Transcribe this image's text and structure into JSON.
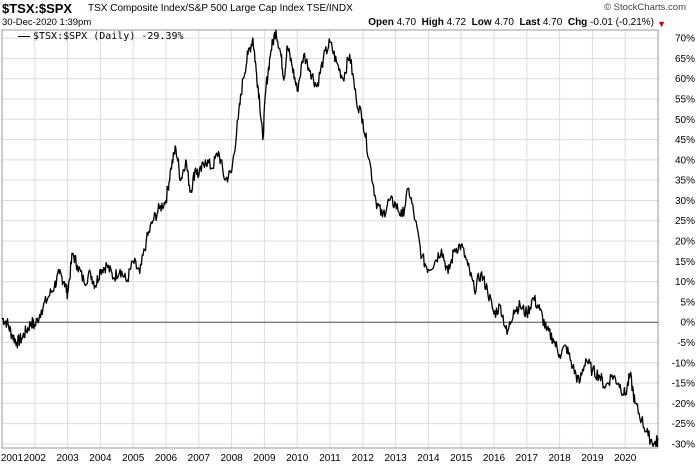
{
  "header": {
    "symbol": "$TSX:$SPX",
    "description": "TSX Composite Index/S&P 500 Large Cap Index",
    "exchange": "TSE/INDX",
    "datetime": "30-Dec-2020 1:39pm",
    "brand": "© StockCharts.com",
    "quote": {
      "open_label": "Open",
      "open": "4.70",
      "high_label": "High",
      "high": "4.72",
      "low_label": "Low",
      "low": "4.70",
      "last_label": "Last",
      "last": "4.70",
      "chg_label": "Chg",
      "chg": "-0.01 (-0.21%)"
    },
    "down_color": "#cc0000"
  },
  "chart_data": {
    "type": "line",
    "title": "$TSX:$SPX",
    "xlabel": "",
    "ylabel": "",
    "x_ticks": [
      "2001",
      "2002",
      "2003",
      "2004",
      "2005",
      "2006",
      "2007",
      "2008",
      "2009",
      "2010",
      "2011",
      "2012",
      "2013",
      "2014",
      "2015",
      "2016",
      "2017",
      "2018",
      "2019",
      "2020"
    ],
    "y_ticks": [
      "-30%",
      "-25%",
      "-20%",
      "-15%",
      "-10%",
      "-5%",
      "0%",
      "5%",
      "10%",
      "15%",
      "20%",
      "25%",
      "30%",
      "35%",
      "40%",
      "45%",
      "50%",
      "55%",
      "60%",
      "65%",
      "70%"
    ],
    "xlim": [
      2001.0,
      2021.0
    ],
    "ylim": [
      -31,
      72
    ],
    "grid": true,
    "zero_line": 0,
    "legend_position": "top-left",
    "series": [
      {
        "name": "$TSX:$SPX (Daily) -29.39%",
        "color": "#000000",
        "x": [
          2001.0,
          2001.15,
          2001.3,
          2001.45,
          2001.6,
          2001.75,
          2001.9,
          2002.0,
          2002.2,
          2002.4,
          2002.6,
          2002.75,
          2002.9,
          2003.0,
          2003.15,
          2003.3,
          2003.5,
          2003.7,
          2003.85,
          2004.0,
          2004.2,
          2004.4,
          2004.6,
          2004.8,
          2005.0,
          2005.2,
          2005.4,
          2005.6,
          2005.8,
          2006.0,
          2006.15,
          2006.3,
          2006.45,
          2006.6,
          2006.75,
          2006.9,
          2007.0,
          2007.2,
          2007.4,
          2007.6,
          2007.8,
          2008.0,
          2008.2,
          2008.35,
          2008.5,
          2008.65,
          2008.75,
          2008.85,
          2008.95,
          2009.05,
          2009.2,
          2009.35,
          2009.5,
          2009.6,
          2009.7,
          2009.85,
          2010.0,
          2010.2,
          2010.4,
          2010.6,
          2010.8,
          2011.0,
          2011.2,
          2011.4,
          2011.6,
          2011.8,
          2012.0,
          2012.2,
          2012.4,
          2012.6,
          2012.8,
          2013.0,
          2013.2,
          2013.4,
          2013.6,
          2013.8,
          2014.0,
          2014.2,
          2014.4,
          2014.6,
          2014.8,
          2015.0,
          2015.2,
          2015.4,
          2015.6,
          2015.8,
          2016.0,
          2016.2,
          2016.4,
          2016.6,
          2016.8,
          2017.0,
          2017.2,
          2017.4,
          2017.6,
          2017.8,
          2018.0,
          2018.2,
          2018.4,
          2018.6,
          2018.8,
          2019.0,
          2019.2,
          2019.4,
          2019.6,
          2019.8,
          2020.0,
          2020.15,
          2020.3,
          2020.5,
          2020.7,
          2020.9,
          2021.0
        ],
        "y": [
          1,
          0,
          -3,
          -5,
          -4,
          -2,
          0,
          -1,
          3,
          6,
          9,
          12,
          10,
          7,
          17,
          14,
          10,
          12,
          9,
          13,
          14,
          11,
          13,
          10,
          15,
          12,
          20,
          25,
          28,
          30,
          38,
          43,
          35,
          40,
          32,
          38,
          36,
          40,
          38,
          42,
          35,
          37,
          50,
          60,
          66,
          70,
          62,
          55,
          45,
          58,
          67,
          72,
          66,
          60,
          68,
          63,
          57,
          66,
          62,
          58,
          65,
          69,
          64,
          60,
          66,
          55,
          50,
          40,
          30,
          26,
          30,
          29,
          26,
          33,
          25,
          16,
          13,
          15,
          18,
          12,
          18,
          19,
          14,
          8,
          12,
          8,
          2,
          4,
          -3,
          3,
          4,
          2,
          6,
          3,
          -2,
          -4,
          -8,
          -6,
          -11,
          -15,
          -9,
          -12,
          -13,
          -16,
          -13,
          -15,
          -18,
          -13,
          -20,
          -24,
          -28,
          -30,
          -29
        ]
      }
    ]
  }
}
